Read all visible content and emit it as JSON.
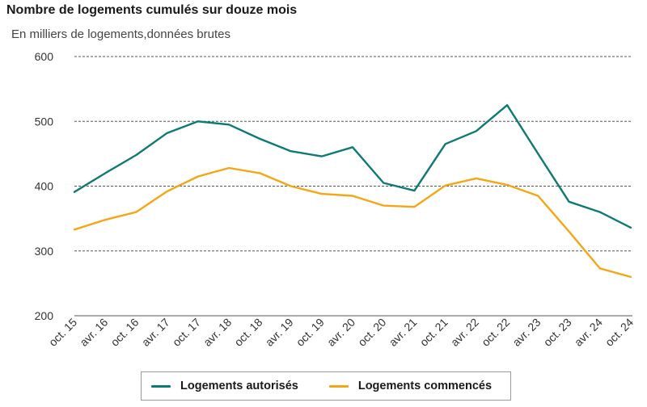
{
  "chart": {
    "title": "Nombre de logements cumulés sur douze mois",
    "subtitle": "En milliers de logements,données brutes"
  },
  "colors": {
    "autorises": "#0e7a74",
    "commences": "#f4a615",
    "grid": "#555555"
  },
  "chart_data": {
    "type": "line",
    "title": "Nombre de logements cumulés sur douze mois",
    "subtitle": "En milliers de logements,données brutes",
    "ylim": [
      200,
      600
    ],
    "yticks": [
      200,
      300,
      400,
      500,
      600
    ],
    "grid": true,
    "legend_position": "bottom",
    "x_labels": [
      "oct. 15",
      "avr. 16",
      "oct. 16",
      "avr. 17",
      "oct. 17",
      "avr. 18",
      "oct. 18",
      "avr. 19",
      "oct. 19",
      "avr. 20",
      "oct. 20",
      "avr. 21",
      "oct. 21",
      "avr. 22",
      "oct. 22",
      "avr. 23",
      "oct. 23",
      "avr. 24",
      "oct. 24"
    ],
    "x": [
      "oct. 15",
      "avr. 16",
      "oct. 16",
      "avr. 17",
      "oct. 17",
      "avr. 18",
      "oct. 18",
      "avr. 19",
      "oct. 19",
      "avr. 20",
      "oct. 20",
      "avr. 21",
      "oct. 21",
      "avr. 22",
      "oct. 22",
      "avr. 23",
      "oct. 23",
      "avr. 24",
      "oct. 24"
    ],
    "series": [
      {
        "name": "Logements autorisés",
        "color": "#0e7a74",
        "values": [
          391,
          420,
          448,
          482,
          500,
          495,
          473,
          454,
          446,
          460,
          405,
          393,
          465,
          485,
          525,
          450,
          376,
          360,
          336
        ]
      },
      {
        "name": "Logements commencés",
        "color": "#f4a615",
        "values": [
          333,
          348,
          360,
          392,
          415,
          428,
          420,
          400,
          388,
          385,
          370,
          368,
          401,
          412,
          402,
          385,
          330,
          273,
          260
        ]
      }
    ]
  }
}
